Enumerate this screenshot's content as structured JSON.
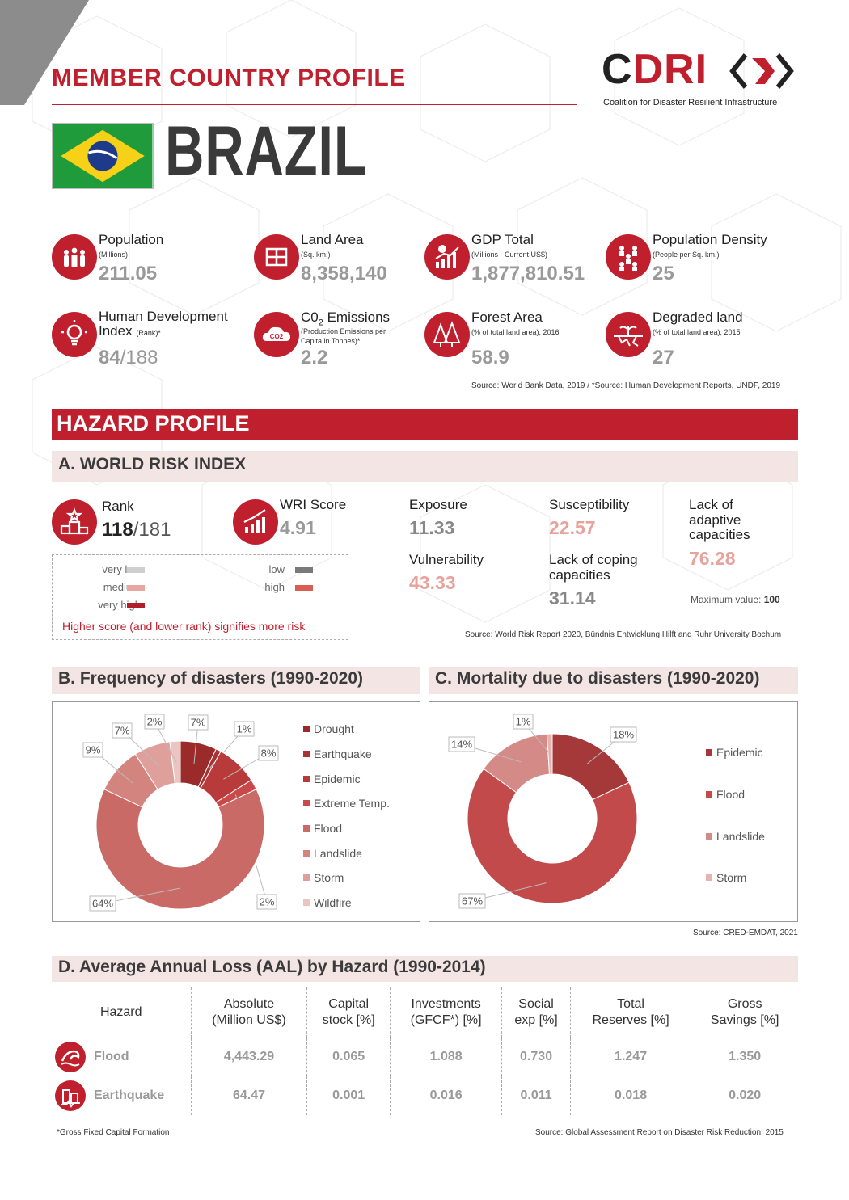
{
  "header": {
    "title": "MEMBER COUNTRY PROFILE",
    "logo_c": "C",
    "logo_dri": "DRI",
    "logo_subtitle": "Coalition for Disaster Resilient Infrastructure"
  },
  "country": {
    "name": "BRAZIL"
  },
  "stats": [
    {
      "label": "Population",
      "sub": "(Millions)",
      "value": "211.05",
      "icon": "population-icon"
    },
    {
      "label": "Land Area",
      "sub": "(Sq. km.)",
      "value": "8,358,140",
      "icon": "land-area-icon"
    },
    {
      "label": "GDP Total",
      "sub": "(Millions - Current US$)",
      "value": "1,877,810.51",
      "icon": "gdp-icon"
    },
    {
      "label": "Population Density",
      "sub": "(People per Sq. km.)",
      "value": "25",
      "icon": "population-density-icon"
    },
    {
      "label": "Human Development",
      "label2": "Index",
      "label2_sub": "(Rank)*",
      "value": "84",
      "value_total": "/188",
      "icon": "lightbulb-icon"
    },
    {
      "label": "C0",
      "label_sub": "2",
      "label_rest": " Emissions",
      "sub": "(Production Emissions per",
      "sub2": "Capita in Tonnes)*",
      "value": "2.2",
      "icon": "co2-cloud-icon",
      "icon_text": "CO2"
    },
    {
      "label": "Forest Area",
      "sub": "(% of total land area), 2016",
      "value": "58.9",
      "icon": "forest-icon"
    },
    {
      "label": "Degraded land",
      "sub": "(% of total land area), 2015",
      "value": "27",
      "icon": "degraded-land-icon"
    }
  ],
  "stats_source": "Source: World Bank Data, 2019 / *Source: Human Development Reports, UNDP, 2019",
  "hazard": {
    "title": "HAZARD PROFILE",
    "wri_title": "A. WORLD RISK INDEX",
    "rank_label": "Rank",
    "rank_value": "118",
    "rank_total": "/181",
    "score_label": "WRI Score",
    "score_value": "4.91",
    "exposure_label": "Exposure",
    "exposure_value": "11.33",
    "susceptibility_label": "Susceptibility",
    "susceptibility_value": "22.57",
    "lack_adaptive_label_1": "Lack of",
    "lack_adaptive_label_2": "adaptive",
    "lack_adaptive_label_3": "capacities",
    "lack_adaptive_value": "76.28",
    "vulnerability_label": "Vulnerability",
    "vulnerability_value": "43.33",
    "lack_coping_label_1": "Lack of coping",
    "lack_coping_label_2": "capacities",
    "lack_coping_value": "31.14",
    "max_label": "Maximum value:",
    "max_value": "100",
    "legend": {
      "very_low": "very low",
      "low": "low",
      "medium": "medium",
      "high": "high",
      "very_high": "very high",
      "note": "Higher score (and lower rank) signifies more risk"
    },
    "wri_source": "Source: World Risk Report 2020, Bündnis Entwicklung Hilft and Ruhr University Bochum",
    "colors": {
      "very_low": "#cfcfcf",
      "low": "#7a7a7a",
      "medium": "#e8a7a1",
      "high": "#d95f55",
      "very_high": "#b0202c"
    }
  },
  "chart_data": [
    {
      "type": "pie",
      "title": "B.  Frequency of disasters (1990-2020)",
      "categories": [
        "Drought",
        "Earthquake",
        "Epidemic",
        "Extreme Temp.",
        "Flood",
        "Landslide",
        "Storm",
        "Wildfire"
      ],
      "values": [
        7,
        1,
        8,
        2,
        64,
        9,
        7,
        2
      ],
      "labels": [
        "7%",
        "1%",
        "8%",
        "2%",
        "64%",
        "9%",
        "7%",
        "2%"
      ],
      "colors": [
        "#9b2b2b",
        "#a83333",
        "#b83a3a",
        "#c9484a",
        "#c96a66",
        "#d4847f",
        "#dfa09c",
        "#ecc4c1"
      ]
    },
    {
      "type": "pie",
      "title": "C.  Mortality due to disasters (1990-2020)",
      "categories": [
        "Epidemic",
        "Flood",
        "Landslide",
        "Storm"
      ],
      "values": [
        18,
        67,
        14,
        1
      ],
      "labels": [
        "18%",
        "67%",
        "14%",
        "1%"
      ],
      "colors": [
        "#a53838",
        "#c24a4a",
        "#d48a86",
        "#e7b3ae"
      ]
    }
  ],
  "charts_source": "Source: CRED-EMDAT, 2021",
  "aal": {
    "title": "D. Average Annual Loss (AAL) by Hazard (1990-2014)",
    "headers": [
      [
        "Hazard",
        ""
      ],
      [
        "Absolute",
        "(Million US$)"
      ],
      [
        "Capital",
        "stock [%]"
      ],
      [
        "Investments",
        "(GFCF*) [%]"
      ],
      [
        "Social",
        "exp [%]"
      ],
      [
        "Total",
        "Reserves [%]"
      ],
      [
        "Gross",
        "Savings [%]"
      ]
    ],
    "rows": [
      {
        "hazard": "Flood",
        "icon": "flood-icon",
        "values": [
          "4,443.29",
          "0.065",
          "1.088",
          "0.730",
          "1.247",
          "1.350"
        ]
      },
      {
        "hazard": "Earthquake",
        "icon": "earthquake-icon",
        "values": [
          "64.47",
          "0.001",
          "0.016",
          "0.011",
          "0.018",
          "0.020"
        ]
      }
    ],
    "footnote": "*Gross Fixed Capital Formation",
    "source": "Source: Global Assessment Report on Disaster Risk Reduction, 2015"
  }
}
